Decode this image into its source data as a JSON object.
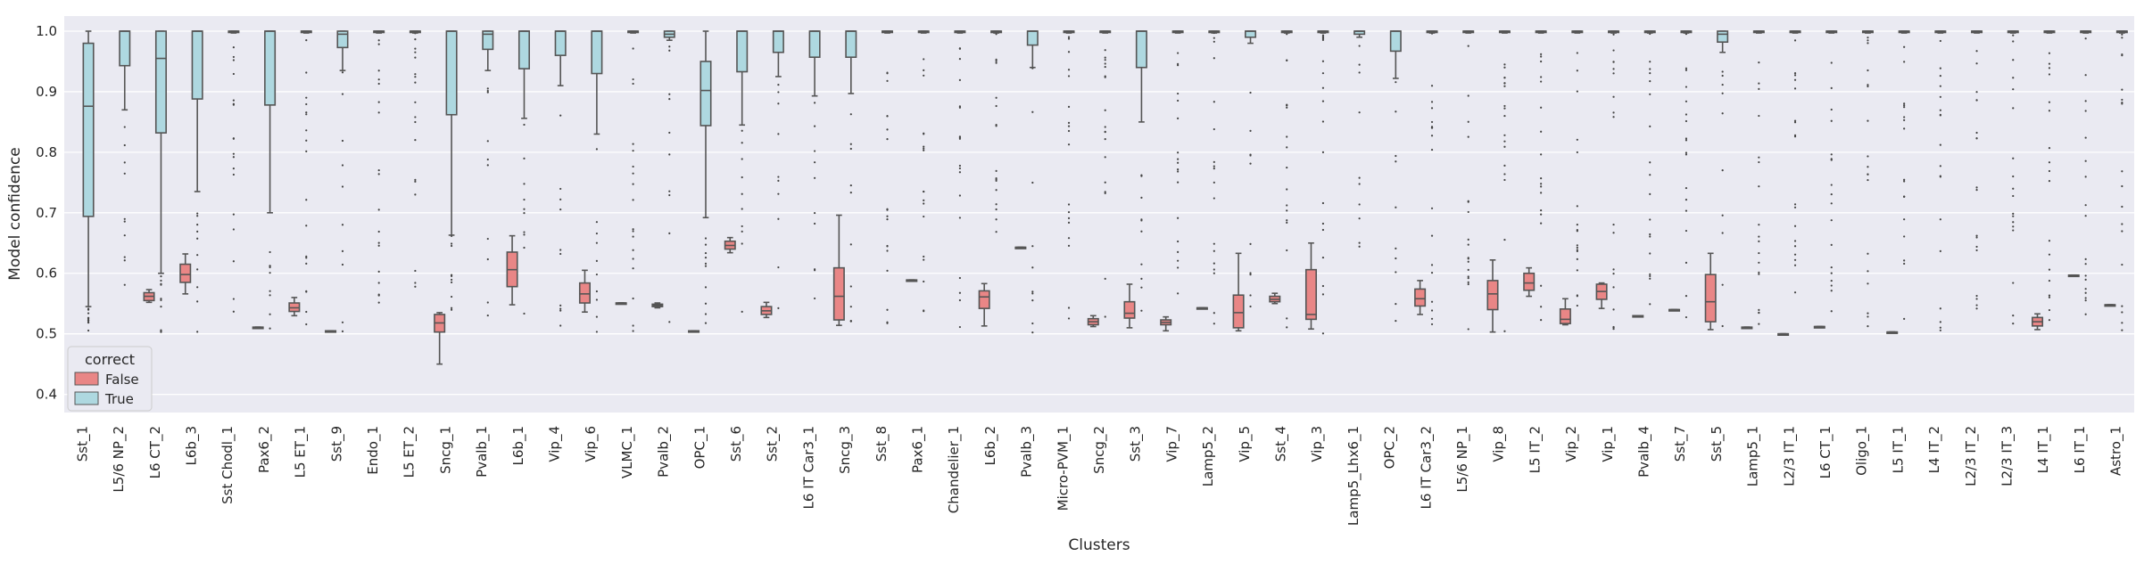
{
  "chart_data": {
    "type": "box",
    "title": "",
    "xlabel": "Clusters",
    "ylabel": "Model confidence",
    "ylim": [
      0.37,
      1.025
    ],
    "yticks": [
      "0.4",
      "0.5",
      "0.6",
      "0.7",
      "0.8",
      "0.9",
      "1.0"
    ],
    "grid": true,
    "legend": {
      "title": "correct",
      "placement": "lower-left"
    },
    "categories": [
      "Sst_1",
      "L5/6 NP_2",
      "L6 CT_2",
      "L6b_3",
      "Sst Chodl_1",
      "Pax6_2",
      "L5 ET_1",
      "Sst_9",
      "Endo_1",
      "L5 ET_2",
      "Sncg_1",
      "Pvalb_1",
      "L6b_1",
      "Vip_4",
      "Vip_6",
      "VLMC_1",
      "Pvalb_2",
      "OPC_1",
      "Sst_6",
      "Sst_2",
      "L6 IT Car3_1",
      "Sncg_3",
      "Sst_8",
      "Pax6_1",
      "Chandelier_1",
      "L6b_2",
      "Pvalb_3",
      "Micro-PVM_1",
      "Sncg_2",
      "Sst_3",
      "Vip_7",
      "Lamp5_2",
      "Vip_5",
      "Sst_4",
      "Vip_3",
      "Lamp5_Lhx6_1",
      "OPC_2",
      "L6 IT Car3_2",
      "L5/6 NP_1",
      "Vip_8",
      "L5 IT_2",
      "Vip_2",
      "Vip_1",
      "Pvalb_4",
      "Sst_7",
      "Sst_5",
      "Lamp5_1",
      "L2/3 IT_1",
      "L6 CT_1",
      "Oligo_1",
      "L5 IT_1",
      "L4 IT_2",
      "L2/3 IT_2",
      "L2/3 IT_3",
      "L4 IT_1",
      "L6 IT_1",
      "Astro_1"
    ],
    "series": [
      {
        "name": "False",
        "color": "#e98686",
        "boxes": [
          null,
          null,
          {
            "lw": 0.552,
            "q1": 0.555,
            "med": 0.562,
            "q3": 0.568,
            "uw": 0.573
          },
          {
            "lw": 0.566,
            "q1": 0.585,
            "med": 0.598,
            "q3": 0.615,
            "uw": 0.632
          },
          null,
          {
            "lw": 0.511,
            "q1": 0.511,
            "med": 0.511,
            "q3": 0.511,
            "uw": 0.511
          },
          {
            "lw": 0.53,
            "q1": 0.537,
            "med": 0.543,
            "q3": 0.551,
            "uw": 0.56
          },
          {
            "lw": 0.505,
            "q1": 0.505,
            "med": 0.505,
            "q3": 0.505,
            "uw": 0.505
          },
          null,
          null,
          {
            "lw": 0.45,
            "q1": 0.503,
            "med": 0.518,
            "q3": 0.532,
            "uw": 0.535
          },
          null,
          {
            "lw": 0.548,
            "q1": 0.578,
            "med": 0.606,
            "q3": 0.635,
            "uw": 0.662
          },
          null,
          {
            "lw": 0.536,
            "q1": 0.551,
            "med": 0.566,
            "q3": 0.584,
            "uw": 0.605
          },
          {
            "lw": 0.551,
            "q1": 0.551,
            "med": 0.551,
            "q3": 0.551,
            "uw": 0.551
          },
          {
            "lw": 0.543,
            "q1": 0.545,
            "med": 0.547,
            "q3": 0.549,
            "uw": 0.551
          },
          {
            "lw": 0.505,
            "q1": 0.505,
            "med": 0.505,
            "q3": 0.505,
            "uw": 0.505
          },
          {
            "lw": 0.634,
            "q1": 0.64,
            "med": 0.646,
            "q3": 0.653,
            "uw": 0.659
          },
          {
            "lw": 0.527,
            "q1": 0.532,
            "med": 0.538,
            "q3": 0.545,
            "uw": 0.552
          },
          null,
          {
            "lw": 0.514,
            "q1": 0.523,
            "med": 0.562,
            "q3": 0.609,
            "uw": 0.696
          },
          null,
          {
            "lw": 0.589,
            "q1": 0.589,
            "med": 0.589,
            "q3": 0.589,
            "uw": 0.589
          },
          null,
          {
            "lw": 0.513,
            "q1": 0.542,
            "med": 0.561,
            "q3": 0.571,
            "uw": 0.583
          },
          {
            "lw": 0.643,
            "q1": 0.643,
            "med": 0.643,
            "q3": 0.643,
            "uw": 0.643
          },
          null,
          {
            "lw": 0.512,
            "q1": 0.515,
            "med": 0.52,
            "q3": 0.525,
            "uw": 0.53
          },
          {
            "lw": 0.51,
            "q1": 0.526,
            "med": 0.534,
            "q3": 0.553,
            "uw": 0.582
          },
          {
            "lw": 0.505,
            "q1": 0.515,
            "med": 0.519,
            "q3": 0.523,
            "uw": 0.528
          },
          {
            "lw": 0.543,
            "q1": 0.543,
            "med": 0.543,
            "q3": 0.543,
            "uw": 0.543
          },
          {
            "lw": 0.505,
            "q1": 0.51,
            "med": 0.535,
            "q3": 0.564,
            "uw": 0.633
          },
          {
            "lw": 0.55,
            "q1": 0.553,
            "med": 0.557,
            "q3": 0.562,
            "uw": 0.567
          },
          {
            "lw": 0.508,
            "q1": 0.524,
            "med": 0.532,
            "q3": 0.606,
            "uw": 0.65
          },
          null,
          null,
          {
            "lw": 0.532,
            "q1": 0.546,
            "med": 0.558,
            "q3": 0.574,
            "uw": 0.588
          },
          null,
          {
            "lw": 0.503,
            "q1": 0.54,
            "med": 0.566,
            "q3": 0.588,
            "uw": 0.622
          },
          {
            "lw": 0.562,
            "q1": 0.572,
            "med": 0.584,
            "q3": 0.6,
            "uw": 0.609
          },
          {
            "lw": 0.515,
            "q1": 0.517,
            "med": 0.524,
            "q3": 0.541,
            "uw": 0.558
          },
          {
            "lw": 0.542,
            "q1": 0.557,
            "med": 0.57,
            "q3": 0.582,
            "uw": 0.584
          },
          {
            "lw": 0.53,
            "q1": 0.53,
            "med": 0.53,
            "q3": 0.53,
            "uw": 0.53
          },
          {
            "lw": 0.54,
            "q1": 0.54,
            "med": 0.54,
            "q3": 0.54,
            "uw": 0.54
          },
          {
            "lw": 0.507,
            "q1": 0.52,
            "med": 0.553,
            "q3": 0.598,
            "uw": 0.633
          },
          {
            "lw": 0.511,
            "q1": 0.511,
            "med": 0.511,
            "q3": 0.511,
            "uw": 0.511
          },
          {
            "lw": 0.5,
            "q1": 0.5,
            "med": 0.5,
            "q3": 0.5,
            "uw": 0.5
          },
          {
            "lw": 0.512,
            "q1": 0.512,
            "med": 0.512,
            "q3": 0.512,
            "uw": 0.512
          },
          null,
          {
            "lw": 0.503,
            "q1": 0.503,
            "med": 0.503,
            "q3": 0.503,
            "uw": 0.503
          },
          null,
          null,
          null,
          {
            "lw": 0.507,
            "q1": 0.513,
            "med": 0.52,
            "q3": 0.527,
            "uw": 0.533
          },
          {
            "lw": 0.597,
            "q1": 0.597,
            "med": 0.597,
            "q3": 0.597,
            "uw": 0.597
          },
          {
            "lw": 0.548,
            "q1": 0.548,
            "med": 0.548,
            "q3": 0.548,
            "uw": 0.548
          }
        ]
      },
      {
        "name": "True",
        "color": "#aed8e0",
        "boxes": [
          {
            "lw": 0.545,
            "q1": 0.694,
            "med": 0.876,
            "q3": 0.98,
            "uw": 1.0
          },
          {
            "lw": 0.87,
            "q1": 0.943,
            "med": 1.0,
            "q3": 1.0,
            "uw": 1.0
          },
          {
            "lw": 0.6,
            "q1": 0.832,
            "med": 0.955,
            "q3": 1.0,
            "uw": 1.0
          },
          {
            "lw": 0.735,
            "q1": 0.888,
            "med": 1.0,
            "q3": 1.0,
            "uw": 1.0
          },
          {
            "lw": 0.997,
            "q1": 0.999,
            "med": 1.0,
            "q3": 1.0,
            "uw": 1.0
          },
          {
            "lw": 0.7,
            "q1": 0.878,
            "med": 1.0,
            "q3": 1.0,
            "uw": 1.0
          },
          {
            "lw": 0.997,
            "q1": 0.999,
            "med": 1.0,
            "q3": 1.0,
            "uw": 1.0
          },
          {
            "lw": 0.935,
            "q1": 0.973,
            "med": 0.995,
            "q3": 1.0,
            "uw": 1.0
          },
          {
            "lw": 0.997,
            "q1": 0.999,
            "med": 1.0,
            "q3": 1.0,
            "uw": 1.0
          },
          {
            "lw": 0.997,
            "q1": 0.999,
            "med": 1.0,
            "q3": 1.0,
            "uw": 1.0
          },
          {
            "lw": 0.663,
            "q1": 0.862,
            "med": 1.0,
            "q3": 1.0,
            "uw": 1.0
          },
          {
            "lw": 0.935,
            "q1": 0.97,
            "med": 0.995,
            "q3": 1.0,
            "uw": 1.0
          },
          {
            "lw": 0.856,
            "q1": 0.938,
            "med": 1.0,
            "q3": 1.0,
            "uw": 1.0
          },
          {
            "lw": 0.91,
            "q1": 0.96,
            "med": 1.0,
            "q3": 1.0,
            "uw": 1.0
          },
          {
            "lw": 0.83,
            "q1": 0.93,
            "med": 1.0,
            "q3": 1.0,
            "uw": 1.0
          },
          {
            "lw": 0.997,
            "q1": 0.999,
            "med": 1.0,
            "q3": 1.0,
            "uw": 1.0
          },
          {
            "lw": 0.985,
            "q1": 0.99,
            "med": 0.995,
            "q3": 1.0,
            "uw": 1.0
          },
          {
            "lw": 0.692,
            "q1": 0.844,
            "med": 0.902,
            "q3": 0.95,
            "uw": 1.0
          },
          {
            "lw": 0.845,
            "q1": 0.933,
            "med": 1.0,
            "q3": 1.0,
            "uw": 1.0
          },
          {
            "lw": 0.925,
            "q1": 0.965,
            "med": 1.0,
            "q3": 1.0,
            "uw": 1.0
          },
          {
            "lw": 0.893,
            "q1": 0.957,
            "med": 1.0,
            "q3": 1.0,
            "uw": 1.0
          },
          {
            "lw": 0.897,
            "q1": 0.957,
            "med": 1.0,
            "q3": 1.0,
            "uw": 1.0
          },
          {
            "lw": 0.997,
            "q1": 0.999,
            "med": 1.0,
            "q3": 1.0,
            "uw": 1.0
          },
          {
            "lw": 0.997,
            "q1": 0.999,
            "med": 1.0,
            "q3": 1.0,
            "uw": 1.0
          },
          {
            "lw": 0.997,
            "q1": 0.999,
            "med": 1.0,
            "q3": 1.0,
            "uw": 1.0
          },
          {
            "lw": 0.997,
            "q1": 0.999,
            "med": 1.0,
            "q3": 1.0,
            "uw": 1.0
          },
          {
            "lw": 0.94,
            "q1": 0.977,
            "med": 1.0,
            "q3": 1.0,
            "uw": 1.0
          },
          {
            "lw": 0.997,
            "q1": 0.999,
            "med": 1.0,
            "q3": 1.0,
            "uw": 1.0
          },
          {
            "lw": 0.997,
            "q1": 0.999,
            "med": 1.0,
            "q3": 1.0,
            "uw": 1.0
          },
          {
            "lw": 0.85,
            "q1": 0.94,
            "med": 1.0,
            "q3": 1.0,
            "uw": 1.0
          },
          {
            "lw": 0.997,
            "q1": 0.999,
            "med": 1.0,
            "q3": 1.0,
            "uw": 1.0
          },
          {
            "lw": 0.997,
            "q1": 0.999,
            "med": 1.0,
            "q3": 1.0,
            "uw": 1.0
          },
          {
            "lw": 0.98,
            "q1": 0.99,
            "med": 1.0,
            "q3": 1.0,
            "uw": 1.0
          },
          {
            "lw": 0.997,
            "q1": 0.999,
            "med": 1.0,
            "q3": 1.0,
            "uw": 1.0
          },
          {
            "lw": 0.997,
            "q1": 0.999,
            "med": 1.0,
            "q3": 1.0,
            "uw": 1.0
          },
          {
            "lw": 0.99,
            "q1": 0.995,
            "med": 1.0,
            "q3": 1.0,
            "uw": 1.0
          },
          {
            "lw": 0.922,
            "q1": 0.967,
            "med": 1.0,
            "q3": 1.0,
            "uw": 1.0
          },
          {
            "lw": 0.997,
            "q1": 0.999,
            "med": 1.0,
            "q3": 1.0,
            "uw": 1.0
          },
          {
            "lw": 0.997,
            "q1": 0.999,
            "med": 1.0,
            "q3": 1.0,
            "uw": 1.0
          },
          {
            "lw": 0.997,
            "q1": 0.999,
            "med": 1.0,
            "q3": 1.0,
            "uw": 1.0
          },
          {
            "lw": 0.997,
            "q1": 0.999,
            "med": 1.0,
            "q3": 1.0,
            "uw": 1.0
          },
          {
            "lw": 0.997,
            "q1": 0.999,
            "med": 1.0,
            "q3": 1.0,
            "uw": 1.0
          },
          {
            "lw": 0.997,
            "q1": 0.999,
            "med": 1.0,
            "q3": 1.0,
            "uw": 1.0
          },
          {
            "lw": 0.997,
            "q1": 0.999,
            "med": 1.0,
            "q3": 1.0,
            "uw": 1.0
          },
          {
            "lw": 0.997,
            "q1": 0.999,
            "med": 1.0,
            "q3": 1.0,
            "uw": 1.0
          },
          {
            "lw": 0.965,
            "q1": 0.982,
            "med": 0.995,
            "q3": 1.0,
            "uw": 1.0
          },
          {
            "lw": 0.997,
            "q1": 0.999,
            "med": 1.0,
            "q3": 1.0,
            "uw": 1.0
          },
          {
            "lw": 0.997,
            "q1": 0.999,
            "med": 1.0,
            "q3": 1.0,
            "uw": 1.0
          },
          {
            "lw": 0.997,
            "q1": 0.999,
            "med": 1.0,
            "q3": 1.0,
            "uw": 1.0
          },
          {
            "lw": 0.997,
            "q1": 0.999,
            "med": 1.0,
            "q3": 1.0,
            "uw": 1.0
          },
          {
            "lw": 0.997,
            "q1": 0.999,
            "med": 1.0,
            "q3": 1.0,
            "uw": 1.0
          },
          {
            "lw": 0.997,
            "q1": 0.999,
            "med": 1.0,
            "q3": 1.0,
            "uw": 1.0
          },
          {
            "lw": 0.997,
            "q1": 0.999,
            "med": 1.0,
            "q3": 1.0,
            "uw": 1.0
          },
          {
            "lw": 0.997,
            "q1": 0.999,
            "med": 1.0,
            "q3": 1.0,
            "uw": 1.0
          },
          {
            "lw": 0.997,
            "q1": 0.999,
            "med": 1.0,
            "q3": 1.0,
            "uw": 1.0
          },
          {
            "lw": 0.997,
            "q1": 0.999,
            "med": 1.0,
            "q3": 1.0,
            "uw": 1.0
          },
          {
            "lw": 0.997,
            "q1": 0.999,
            "med": 1.0,
            "q3": 1.0,
            "uw": 1.0
          }
        ]
      }
    ]
  }
}
